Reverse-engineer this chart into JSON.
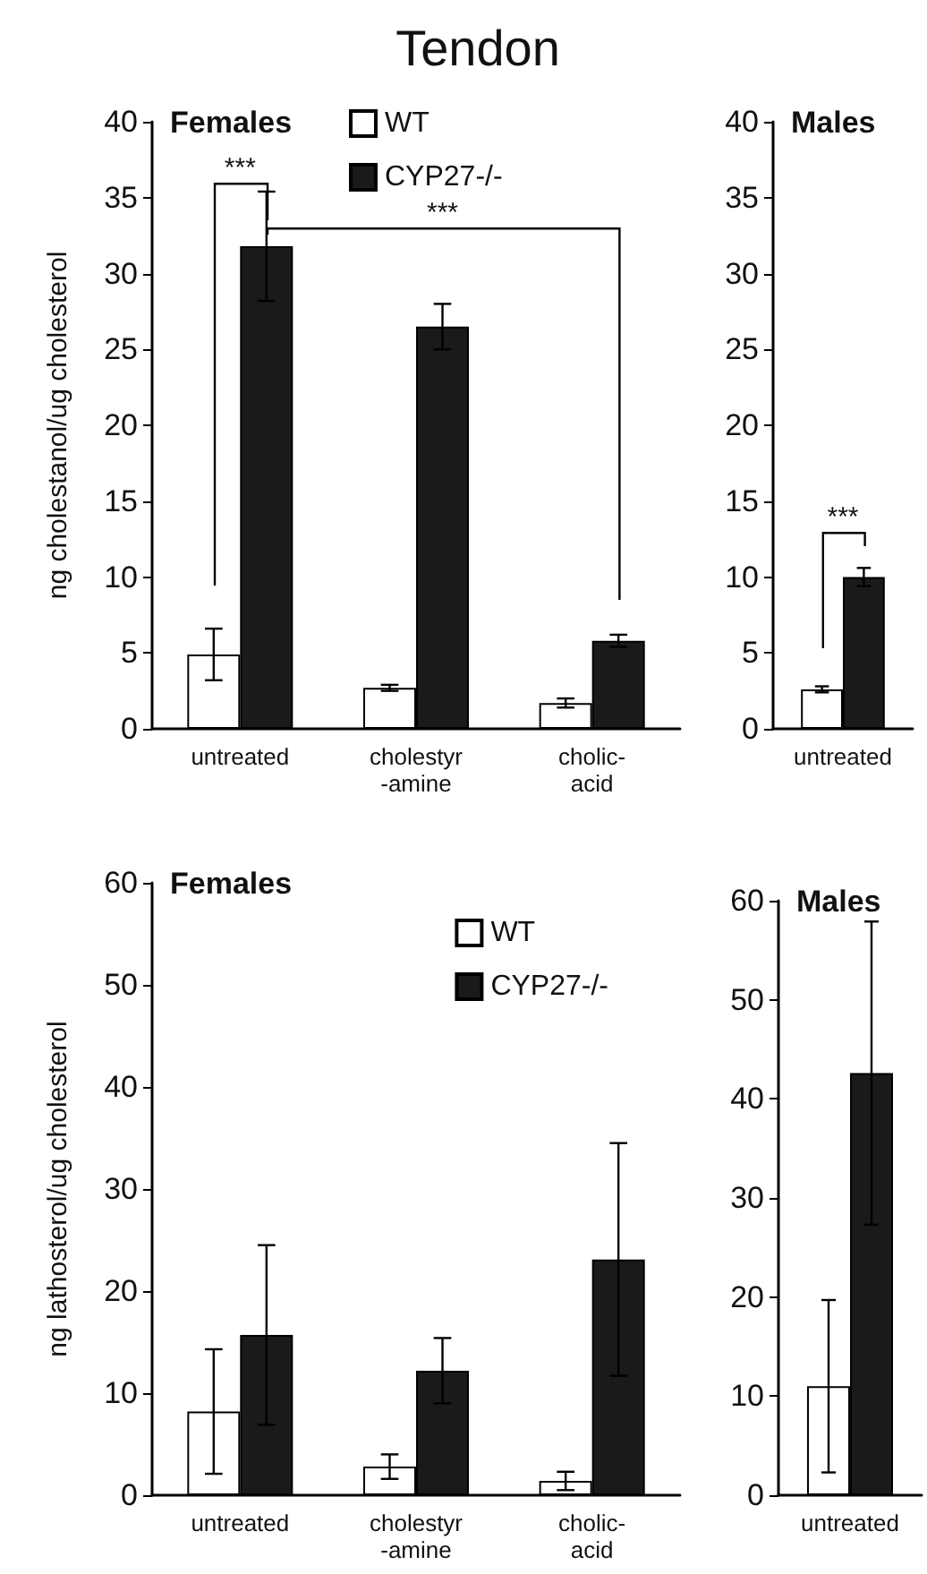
{
  "chart_data": [
    {
      "type": "bar",
      "title": "Tendon",
      "ylabel": "ng cholestanol/ug cholesterol",
      "categories": [
        "untreated",
        "cholestyr\n-amine",
        "cholic-\nacid"
      ],
      "series": [
        {
          "name": "WT",
          "color": "#ffffff",
          "values": [
            4.9,
            2.7,
            1.7
          ],
          "errors": [
            1.7,
            0.2,
            0.3
          ]
        },
        {
          "name": "CYP27-/-",
          "color": "#1a1a1a",
          "values": [
            31.8,
            26.5,
            5.8
          ],
          "errors": [
            3.6,
            1.5,
            0.4
          ]
        }
      ],
      "ylim": [
        0,
        40
      ],
      "yticks": [
        0,
        5,
        10,
        15,
        20,
        25,
        30,
        35,
        40
      ],
      "grid": false,
      "legend": "top",
      "annotations": [
        "Females",
        "***",
        "***"
      ]
    },
    {
      "type": "bar",
      "categories": [
        "untreated"
      ],
      "series": [
        {
          "color": "#ffffff",
          "values": [
            2.6
          ],
          "errors": [
            0.2
          ]
        },
        {
          "color": "#1a1a1a",
          "values": [
            10
          ],
          "errors": [
            0.6
          ]
        }
      ],
      "ylim": [
        0,
        40
      ],
      "yticks": [
        0,
        5,
        10,
        15,
        20,
        25,
        30,
        35,
        40
      ],
      "grid": false,
      "legend": false,
      "annotations": [
        "Males",
        "***"
      ]
    },
    {
      "type": "bar",
      "ylabel": "ng lathosterol/ug cholesterol",
      "categories": [
        "untreated",
        "cholestyr\n-amine",
        "cholic-\nacid"
      ],
      "series": [
        {
          "name": "WT",
          "color": "#ffffff",
          "values": [
            8.2,
            2.8,
            1.4
          ],
          "errors": [
            6.1,
            1.2,
            0.9
          ]
        },
        {
          "name": "CYP27-/-",
          "color": "#1a1a1a",
          "values": [
            15.7,
            12.2,
            23.1
          ],
          "errors": [
            8.8,
            3.2,
            11.4
          ]
        }
      ],
      "ylim": [
        0,
        60
      ],
      "yticks": [
        0,
        10,
        20,
        30,
        40,
        50,
        60
      ],
      "grid": false,
      "legend": "top right",
      "annotations": [
        "Females"
      ]
    },
    {
      "type": "bar",
      "categories": [
        "untreated"
      ],
      "series": [
        {
          "color": "#ffffff",
          "values": [
            11
          ],
          "errors": [
            8.7
          ]
        },
        {
          "color": "#1a1a1a",
          "values": [
            42.6
          ],
          "errors": [
            15.3
          ]
        }
      ],
      "ylim": [
        0,
        60
      ],
      "yticks": [
        0,
        10,
        20,
        30,
        40,
        50,
        60
      ],
      "grid": false,
      "legend": false,
      "annotations": [
        "Males"
      ]
    }
  ]
}
